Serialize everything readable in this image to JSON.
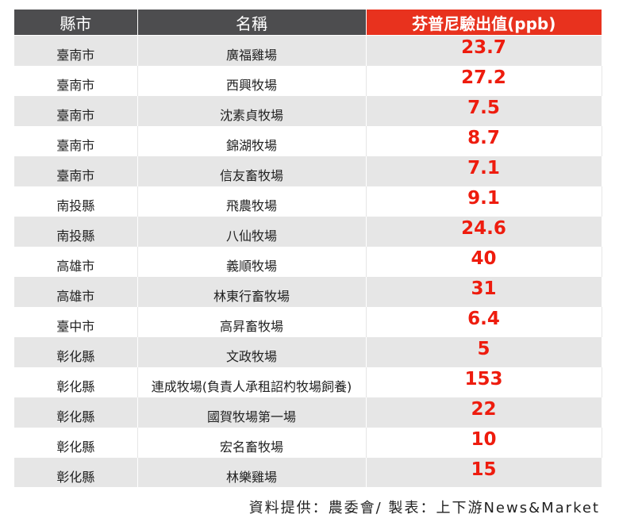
{
  "header": {
    "county": "縣市",
    "name": "名稱",
    "value": "芬普尼驗出值(ppb)"
  },
  "rows": [
    {
      "county": "臺南市",
      "name": "廣福雞場",
      "value": "23.7"
    },
    {
      "county": "臺南市",
      "name": "西興牧場",
      "value": "27.2"
    },
    {
      "county": "臺南市",
      "name": "沈素貞牧場",
      "value": "7.5"
    },
    {
      "county": "臺南市",
      "name": "錦湖牧場",
      "value": "8.7"
    },
    {
      "county": "臺南市",
      "name": "信友畜牧場",
      "value": "7.1"
    },
    {
      "county": "南投縣",
      "name": "飛農牧場",
      "value": "9.1"
    },
    {
      "county": "南投縣",
      "name": "八仙牧場",
      "value": "24.6"
    },
    {
      "county": "高雄市",
      "name": "義順牧場",
      "value": "40"
    },
    {
      "county": "高雄市",
      "name": "林東行畜牧場",
      "value": "31"
    },
    {
      "county": "臺中市",
      "name": "高昇畜牧場",
      "value": "6.4"
    },
    {
      "county": "彰化縣",
      "name": "文政牧場",
      "value": "5"
    },
    {
      "county": "彰化縣",
      "name": "連成牧場(負責人承租詔杓牧場飼養)",
      "value": "153"
    },
    {
      "county": "彰化縣",
      "name": "國賀牧場第一場",
      "value": "22"
    },
    {
      "county": "彰化縣",
      "name": "宏名畜牧場",
      "value": "10"
    },
    {
      "county": "彰化縣",
      "name": "林樂雞場",
      "value": "15"
    }
  ],
  "footer": "資料提供：農委會/ 製表：上下游News&Market",
  "colors": {
    "header_dark": "#4d4d4f",
    "header_accent": "#e8321e",
    "value_text": "#ee1c0e",
    "stripe": "#e6e6e6"
  }
}
